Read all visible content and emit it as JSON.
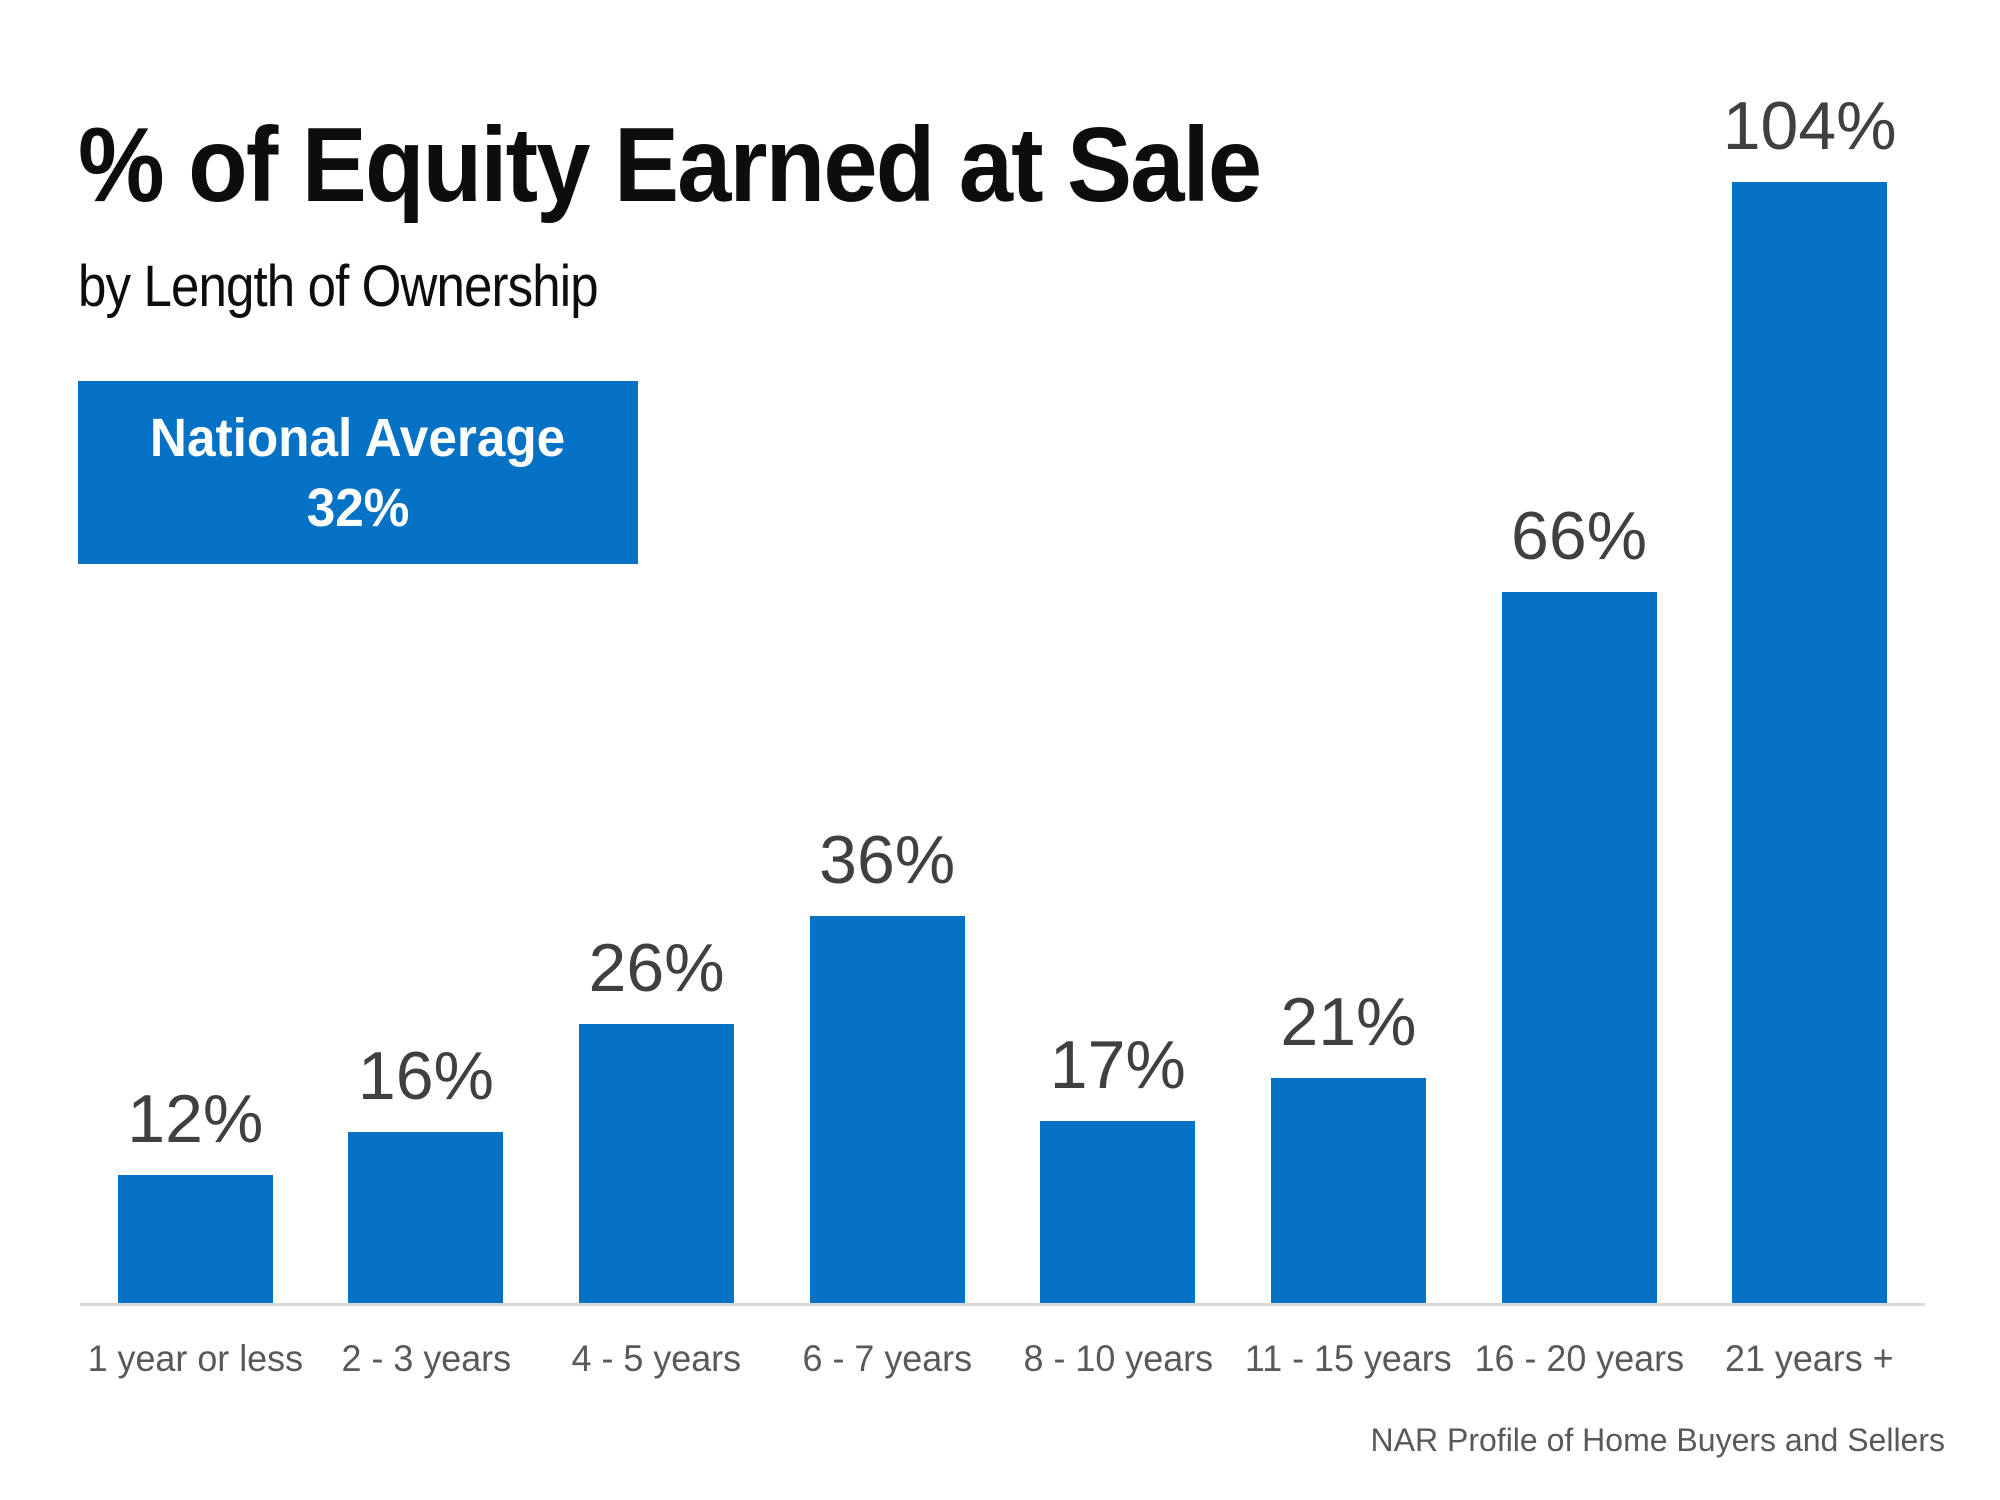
{
  "chart_data": {
    "type": "bar",
    "title": "% of Equity Earned at Sale",
    "subtitle": "by Length of Ownership",
    "categories": [
      "1 year or less",
      "2 - 3 years",
      "4 - 5 years",
      "6 - 7 years",
      "8 - 10 years",
      "11 - 15 years",
      "16 - 20 years",
      "21 years +"
    ],
    "values": [
      12,
      16,
      26,
      36,
      17,
      21,
      66,
      104
    ],
    "value_labels": [
      "12%",
      "16%",
      "26%",
      "36%",
      "17%",
      "21%",
      "66%",
      "104%"
    ],
    "ylim": [
      0,
      110
    ],
    "grid": false,
    "legend": "none",
    "xlabel": "",
    "ylabel": "",
    "annotation": {
      "line1": "National Average",
      "line2": "32%"
    },
    "source": "NAR Profile of Home Buyers and Sellers",
    "colors": {
      "bar": "#0572C6",
      "badge_background": "#0572C6",
      "badge_text": "#FFFFFF",
      "title_text": "#0D0D0D",
      "value_label": "#404040",
      "category_label": "#595959",
      "source_text": "#595959",
      "axis_line": "#D9D9D9"
    }
  }
}
